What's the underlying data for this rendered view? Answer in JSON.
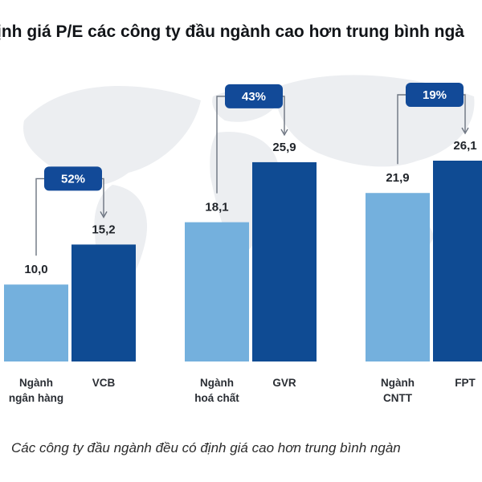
{
  "title": "ịnh giá P/E các công ty đầu ngành cao hơn trung bình ngà",
  "caption": "Các công ty đầu ngành đều có định giá cao hơn trung bình ngàn",
  "colors": {
    "industry_bar": "#74b0dd",
    "company_bar": "#0f4b93",
    "badge": "#124a98",
    "map": "#eceef1"
  },
  "chart_data": {
    "type": "bar",
    "ylim": [
      0,
      30
    ],
    "groups": [
      {
        "industry_label": [
          "Ngành",
          "ngân hàng"
        ],
        "company_label": "VCB",
        "industry_value": 10.0,
        "company_value": 15.2,
        "industry_value_text": "10,0",
        "company_value_text": "15,2",
        "premium": "52%"
      },
      {
        "industry_label": [
          "Ngành",
          "hoá chất"
        ],
        "company_label": "GVR",
        "industry_value": 18.1,
        "company_value": 25.9,
        "industry_value_text": "18,1",
        "company_value_text": "25,9",
        "premium": "43%"
      },
      {
        "industry_label": [
          "Ngành",
          "CNTT"
        ],
        "company_label": "FPT",
        "industry_value": 21.9,
        "company_value": 26.1,
        "industry_value_text": "21,9",
        "company_value_text": "26,1",
        "premium": "19%"
      }
    ]
  }
}
